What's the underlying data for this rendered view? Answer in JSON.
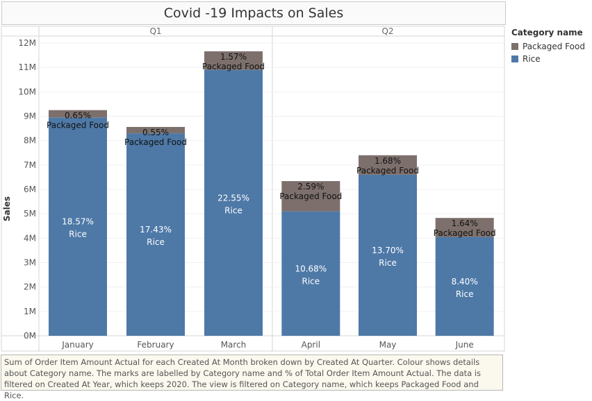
{
  "title": "Covid -19 Impacts on Sales",
  "legend": {
    "title": "Category name",
    "items": [
      {
        "label": "Packaged Food",
        "color": "#7d706c"
      },
      {
        "label": "Rice",
        "color": "#4e79a7"
      }
    ]
  },
  "caption": "Sum of Order Item Amount Actual for each Created At Month broken down by Created At Quarter.  Colour shows details about Category name.  The marks are labelled by Category name and % of Total Order Item Amount Actual. The data is filtered on Created At Year, which keeps 2020. The view is filtered on Category name, which keeps Packaged Food and Rice.",
  "chart_data": {
    "type": "bar",
    "stacked": true,
    "title": "Covid -19 Impacts on Sales",
    "ylabel": "Sales",
    "xlabel": "",
    "ylim": [
      0,
      12000000
    ],
    "yticks": [
      {
        "value": 0,
        "label": "0M"
      },
      {
        "value": 1000000,
        "label": "1M"
      },
      {
        "value": 2000000,
        "label": "2M"
      },
      {
        "value": 3000000,
        "label": "3M"
      },
      {
        "value": 4000000,
        "label": "4M"
      },
      {
        "value": 5000000,
        "label": "5M"
      },
      {
        "value": 6000000,
        "label": "6M"
      },
      {
        "value": 7000000,
        "label": "7M"
      },
      {
        "value": 8000000,
        "label": "8M"
      },
      {
        "value": 9000000,
        "label": "9M"
      },
      {
        "value": 10000000,
        "label": "10M"
      },
      {
        "value": 11000000,
        "label": "11M"
      },
      {
        "value": 12000000,
        "label": "12M"
      }
    ],
    "quarters": [
      {
        "label": "Q1",
        "categories": [
          "January",
          "February",
          "March"
        ]
      },
      {
        "label": "Q2",
        "categories": [
          "April",
          "May",
          "June"
        ]
      }
    ],
    "categories": [
      "January",
      "February",
      "March",
      "April",
      "May",
      "June"
    ],
    "series": [
      {
        "name": "Rice",
        "color": "#4e79a7",
        "label_color": "#ffffff",
        "values": [
          8950000,
          8300000,
          10900000,
          5100000,
          6600000,
          4050000
        ],
        "pct_labels": [
          "18.57%",
          "17.43%",
          "22.55%",
          "10.68%",
          "13.70%",
          "8.40%"
        ]
      },
      {
        "name": "Packaged Food",
        "color": "#7d706c",
        "label_color": "#111111",
        "values": [
          300000,
          260000,
          760000,
          1240000,
          800000,
          780000
        ],
        "pct_labels": [
          "0.65%",
          "0.55%",
          "1.57%",
          "2.59%",
          "1.68%",
          "1.64%"
        ]
      }
    ]
  }
}
